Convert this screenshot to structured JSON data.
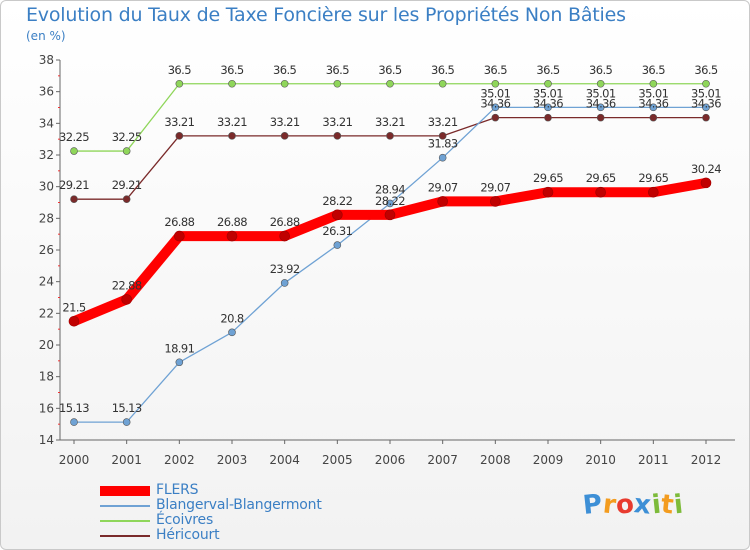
{
  "header": {
    "title": "Evolution du Taux de Taxe Foncière sur les Propriétés Non Bâties",
    "unit": "(en %)"
  },
  "branding": {
    "logo_text": "Proxiti",
    "letters": [
      {
        "ch": "P",
        "color": "#3d8fd6"
      },
      {
        "ch": "r",
        "color": "#f39c1f"
      },
      {
        "ch": "o",
        "color": "#e83b2f"
      },
      {
        "ch": "x",
        "color": "#3d8fd6"
      },
      {
        "ch": "i",
        "color": "#7dbb3a"
      },
      {
        "ch": "t",
        "color": "#f39c1f"
      },
      {
        "ch": "i",
        "color": "#7dbb3a"
      }
    ]
  },
  "chart_data": {
    "type": "line",
    "title": "Evolution du Taux de Taxe Foncière sur les Propriétés Non Bâties",
    "ylabel": "(en %)",
    "xlabel": "",
    "x": [
      "2000",
      "2001",
      "2002",
      "2003",
      "2004",
      "2005",
      "2006",
      "2007",
      "2008",
      "2009",
      "2010",
      "2011",
      "2012"
    ],
    "ylim": [
      14,
      38
    ],
    "yticks": [
      14,
      16,
      18,
      20,
      22,
      24,
      26,
      28,
      30,
      32,
      34,
      36,
      38
    ],
    "grid": false,
    "legend_position": "bottom-left",
    "series": [
      {
        "name": "FLERS",
        "color": "#ff0000",
        "style": "thick",
        "values": [
          21.5,
          22.88,
          26.88,
          26.88,
          26.88,
          28.22,
          28.22,
          29.07,
          29.07,
          29.65,
          29.65,
          29.65,
          30.24
        ],
        "labels": [
          "21.5",
          "22.88",
          "26.88",
          "26.88",
          "26.88",
          "28.22",
          "28.22",
          "29.07",
          "29.07",
          "29.65",
          "29.65",
          "29.65",
          "30.24"
        ]
      },
      {
        "name": "Blangerval-Blangermont",
        "color": "#6fa2d4",
        "style": "thin",
        "values": [
          15.13,
          15.13,
          18.91,
          20.8,
          23.92,
          26.31,
          28.94,
          31.83,
          35.01,
          35.01,
          35.01,
          35.01,
          35.01
        ],
        "labels": [
          "15.13",
          "15.13",
          "18.91",
          "20.8",
          "23.92",
          "26.31",
          "28.94",
          "31.83",
          "35.01",
          "35.01",
          "35.01",
          "35.01",
          "35.01"
        ]
      },
      {
        "name": "Écoivres",
        "color": "#8fd65a",
        "style": "thin",
        "values": [
          32.25,
          32.25,
          36.5,
          36.5,
          36.5,
          36.5,
          36.5,
          36.5,
          36.5,
          36.5,
          36.5,
          36.5,
          36.5
        ],
        "labels": [
          "32.25",
          "32.25",
          "36.5",
          "36.5",
          "36.5",
          "36.5",
          "36.5",
          "36.5",
          "36.5",
          "36.5",
          "36.5",
          "36.5",
          "36.5"
        ]
      },
      {
        "name": "Héricourt",
        "color": "#7a2a2a",
        "style": "thin",
        "values": [
          29.21,
          29.21,
          33.21,
          33.21,
          33.21,
          33.21,
          33.21,
          33.21,
          34.36,
          34.36,
          34.36,
          34.36,
          34.36
        ],
        "labels": [
          "29.21",
          "29.21",
          "33.21",
          "33.21",
          "33.21",
          "33.21",
          "33.21",
          "33.21",
          "34.36",
          "34.36",
          "34.36",
          "34.36",
          "34.36"
        ]
      }
    ]
  }
}
